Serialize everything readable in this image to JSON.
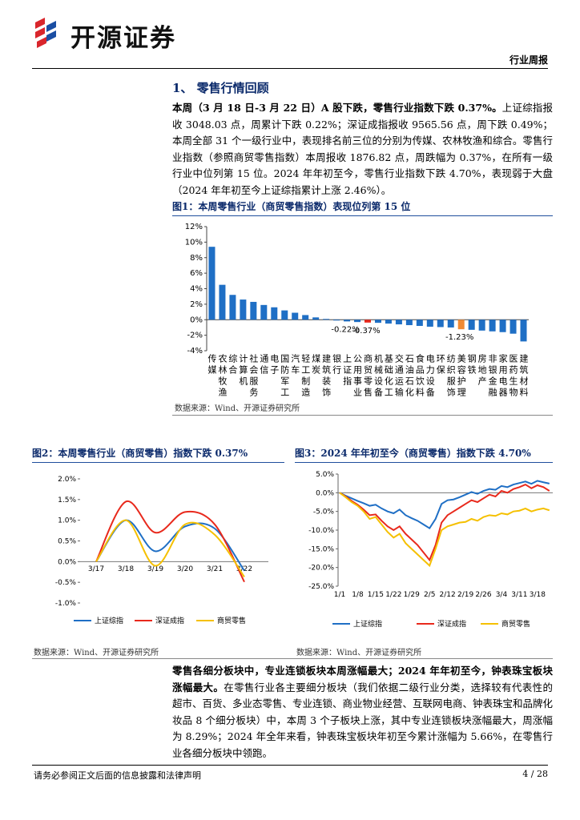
{
  "header": {
    "logo_text": "开源证券",
    "tag": "行业周报"
  },
  "section_title": "1、 零售行情回顾",
  "paragraphs": [
    {
      "bold": "本周（3 月 18 日-3 月 22 日）A 股下跌，零售行业指数下跌 0.37%。",
      "text": "上证综指报收 3048.03 点，周累计下跌 0.22%；深证成指报收 9565.56 点，周下跌 0.49%；本周全部 31 个一级行业中，表现排名前三位的分别为传媒、农林牧渔和综合。零售行业指数（参照商贸零售指数）本周报收 1876.82 点，周跌幅为 0.37%，在所有一级行业中位列第 15 位。2024 年年初至今，零售行业指数下跌 4.70%，表现弱于大盘（2024 年年初至今上证综指累计上涨 2.46%）。"
    },
    {
      "bold": "零售各细分板块中，专业连锁板块本周涨幅最大；2024 年年初至今，钟表珠宝板块涨幅最大。",
      "text": "在零售行业各主要细分板块（我们依据二级行业分类，选择较有代表性的超市、百货、多业态零售、专业连锁、商业物业经营、互联网电商、钟表珠宝和品牌化妆品 8 个细分板块）中，本周 3 个子板块上涨，其中专业连锁板块涨幅最大，周涨幅为 8.29%；2024 年全年来看，钟表珠宝板块年初至今累计涨幅为 5.66%，在零售行业各细分板块中领跑。"
    }
  ],
  "footer": {
    "disclaimer": "请务必参阅正文后面的信息披露和法律声明",
    "page": "4 / 28"
  },
  "chart_data": [
    {
      "type": "bar",
      "title": "图1：本周零售行业（商贸零售指数）表现位列第 15 位",
      "source": "数据来源：Wind、开源证券研究所",
      "categories": [
        "传媒",
        "农林牧渔",
        "综合",
        "计算机",
        "社会服务",
        "通信",
        "电子",
        "国防军工",
        "汽车",
        "轻工制造",
        "煤炭",
        "建筑装饰",
        "银行",
        "上证指",
        "公用事业",
        "商贸零售",
        "机械设备",
        "基础化工",
        "交通运输",
        "石油石化",
        "食品饮料",
        "电力设备",
        "环保",
        "纺织服饰",
        "美容护理",
        "钢铁",
        "房地产",
        "非银金融",
        "家用电器",
        "医药生物",
        "建筑材料"
      ],
      "values": [
        9.4,
        4.5,
        3.2,
        2.6,
        2.3,
        1.9,
        1.6,
        1.2,
        0.9,
        0.6,
        0.3,
        0.1,
        -0.1,
        -0.22,
        -0.3,
        -0.37,
        -0.4,
        -0.5,
        -0.6,
        -0.7,
        -0.8,
        -0.9,
        -0.95,
        -1.0,
        -1.23,
        -1.3,
        -1.4,
        -1.5,
        -1.6,
        -1.8,
        -2.8
      ],
      "value_labels": [
        null,
        null,
        null,
        null,
        null,
        null,
        null,
        null,
        null,
        null,
        null,
        null,
        null,
        "-0.22%",
        null,
        "-0.37%",
        null,
        null,
        null,
        null,
        null,
        null,
        null,
        null,
        "-1.23%",
        null,
        null,
        null,
        null,
        null,
        null
      ],
      "colors": [
        "#1f6fc5",
        "#1f6fc5",
        "#1f6fc5",
        "#1f6fc5",
        "#1f6fc5",
        "#1f6fc5",
        "#1f6fc5",
        "#1f6fc5",
        "#1f6fc5",
        "#1f6fc5",
        "#1f6fc5",
        "#1f6fc5",
        "#1f6fc5",
        "#1f6fc5",
        "#1f6fc5",
        "#e8291c",
        "#1f6fc5",
        "#1f6fc5",
        "#1f6fc5",
        "#1f6fc5",
        "#1f6fc5",
        "#1f6fc5",
        "#1f6fc5",
        "#1f6fc5",
        "#f08a35",
        "#1f6fc5",
        "#1f6fc5",
        "#1f6fc5",
        "#1f6fc5",
        "#1f6fc5",
        "#1f6fc5"
      ],
      "ylim": [
        -4,
        12
      ],
      "yticks": [
        {
          "value": -4,
          "label": "-4%"
        },
        {
          "value": -2,
          "label": "-2%"
        },
        {
          "value": 0,
          "label": "0%"
        },
        {
          "value": 2,
          "label": "2%"
        },
        {
          "value": 4,
          "label": "4%"
        },
        {
          "value": 6,
          "label": "6%"
        },
        {
          "value": 8,
          "label": "8%"
        },
        {
          "value": 10,
          "label": "10%"
        },
        {
          "value": 12,
          "label": "12%"
        }
      ]
    },
    {
      "type": "line",
      "smooth": true,
      "title": "图2：本周零售行业（商贸零售）指数下跌 0.37%",
      "source": "数据来源：Wind、开源证券研究所",
      "categories": [
        "3/17",
        "3/18",
        "3/19",
        "3/20",
        "3/21",
        "3/22"
      ],
      "series": [
        {
          "name": "上证综指",
          "color": "#1f6fc5",
          "values": [
            0,
            1.0,
            0.25,
            0.85,
            0.8,
            -0.22
          ]
        },
        {
          "name": "深证成指",
          "color": "#e8291c",
          "values": [
            0,
            1.45,
            0.7,
            1.2,
            0.9,
            -0.49
          ]
        },
        {
          "name": "商贸零售",
          "color": "#f5c000",
          "values": [
            0,
            1.0,
            -0.1,
            0.9,
            0.65,
            -0.37
          ]
        }
      ],
      "ylim": [
        -1,
        2
      ],
      "yticks": [
        {
          "value": -1,
          "label": "-1.0%"
        },
        {
          "value": -0.5,
          "label": "-0.5%"
        },
        {
          "value": 0,
          "label": "0.0%"
        },
        {
          "value": 0.5,
          "label": "0.5%"
        },
        {
          "value": 1,
          "label": "1.0%"
        },
        {
          "value": 1.5,
          "label": "1.5%"
        },
        {
          "value": 2,
          "label": "2.0%"
        }
      ]
    },
    {
      "type": "line",
      "smooth": false,
      "title": "图3：2024 年年初至今（商贸零售）指数下跌 4.70%",
      "source": "数据来源：Wind、开源证券研究所",
      "categories": [
        "1/1",
        null,
        null,
        "1/8",
        null,
        null,
        "1/15",
        null,
        null,
        "1/22",
        null,
        null,
        "1/29",
        null,
        null,
        "2/5",
        null,
        null,
        "2/12",
        null,
        null,
        "2/19",
        null,
        null,
        "2/26",
        null,
        null,
        "3/4",
        null,
        null,
        "3/11",
        null,
        null,
        "3/18",
        null,
        null
      ],
      "series": [
        {
          "name": "上证综指",
          "color": "#1f6fc5",
          "values": [
            0,
            -0.8,
            -1.5,
            -2.2,
            -2.8,
            -3.5,
            -3.2,
            -4.2,
            -5,
            -5.5,
            -4.5,
            -6,
            -6.8,
            -7.5,
            -8.5,
            -9.5,
            -7,
            -3,
            -2,
            -1.8,
            -1.2,
            -0.5,
            0.2,
            -0.3,
            0.5,
            1,
            0.8,
            1.8,
            1.5,
            2.2,
            2.6,
            3,
            2.4,
            3.2,
            2.8,
            2.46
          ]
        },
        {
          "name": "深证成指",
          "color": "#e8291c",
          "values": [
            0,
            -1,
            -2.2,
            -3.2,
            -4.5,
            -6,
            -5.8,
            -7.5,
            -9,
            -10,
            -9,
            -11,
            -12.5,
            -14,
            -16,
            -18,
            -14,
            -8,
            -6,
            -5,
            -4,
            -3,
            -2,
            -2.5,
            -1.5,
            -0.5,
            -1,
            0.5,
            0,
            1,
            1.5,
            2.2,
            1.2,
            2,
            1.5,
            0.5
          ]
        },
        {
          "name": "商贸零售",
          "color": "#f5c000",
          "values": [
            0,
            -1.2,
            -2.5,
            -3.5,
            -5,
            -7,
            -6.5,
            -8.5,
            -10.5,
            -12,
            -11,
            -13.5,
            -15,
            -16.5,
            -18,
            -19.5,
            -15,
            -10,
            -9,
            -8.5,
            -8,
            -7.8,
            -7,
            -7.5,
            -6.5,
            -6,
            -6.2,
            -5.5,
            -5.8,
            -5,
            -4.8,
            -4.2,
            -5,
            -4.5,
            -4.2,
            -4.7
          ]
        }
      ],
      "ylim": [
        -25,
        5
      ],
      "yticks": [
        {
          "value": -25,
          "label": "-25.0%"
        },
        {
          "value": -20,
          "label": "-20.0%"
        },
        {
          "value": -15,
          "label": "-15.0%"
        },
        {
          "value": -10,
          "label": "-10.0%"
        },
        {
          "value": -5,
          "label": "-5.0%"
        },
        {
          "value": 0,
          "label": "0.0%"
        },
        {
          "value": 5,
          "label": "5.0%"
        }
      ]
    }
  ]
}
